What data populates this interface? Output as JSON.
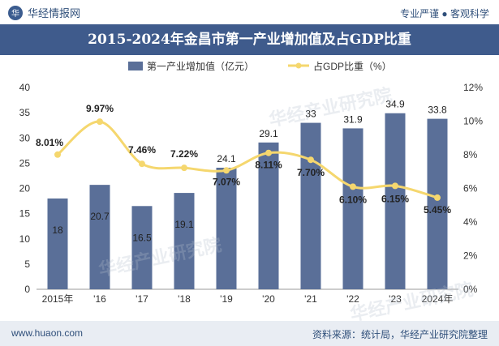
{
  "header": {
    "brand": "华经情报网",
    "tagline": "专业严谨 ● 客观科学",
    "title": "2015-2024年金昌市第一产业增加值及占GDP比重"
  },
  "footer": {
    "url": "www.huaon.com",
    "source": "资料来源：统计局，华经产业研究院整理"
  },
  "watermark": "华经产业研究院",
  "colors": {
    "bar": "#5a6f98",
    "line": "#f5d76e",
    "title_bg": "#3f5b8c"
  },
  "chart_data": {
    "type": "bar",
    "categories": [
      "2015年",
      "'16",
      "'17",
      "'18",
      "'19",
      "'20",
      "'21",
      "'22",
      "'23",
      "2024年"
    ],
    "series": [
      {
        "name": "第一产业增加值（亿元）",
        "type": "bar",
        "axis": "left",
        "values": [
          18,
          20.7,
          16.5,
          19.1,
          24.1,
          29.1,
          33,
          31.9,
          34.9,
          33.8
        ],
        "labels": [
          "18",
          "20.7",
          "16.5",
          "19.1",
          "24.1",
          "29.1",
          "33",
          "31.9",
          "34.9",
          "33.8"
        ]
      },
      {
        "name": "占GDP比重（%）",
        "type": "line",
        "axis": "right",
        "values": [
          8.01,
          9.97,
          7.46,
          7.22,
          7.07,
          8.11,
          7.7,
          6.1,
          6.15,
          5.45
        ],
        "labels": [
          "8.01%",
          "9.97%",
          "7.46%",
          "7.22%",
          "7.07%",
          "8.11%",
          "7.70%",
          "6.10%",
          "6.15%",
          "5.45%"
        ]
      }
    ],
    "y_left": {
      "min": 0,
      "max": 40,
      "ticks": [
        "0",
        "5",
        "10",
        "15",
        "20",
        "25",
        "30",
        "35",
        "40"
      ]
    },
    "y_right": {
      "min": 0,
      "max": 12,
      "ticks": [
        "0%",
        "2%",
        "4%",
        "6%",
        "8%",
        "10%",
        "12%"
      ]
    },
    "legend_position": "top",
    "grid": false
  }
}
